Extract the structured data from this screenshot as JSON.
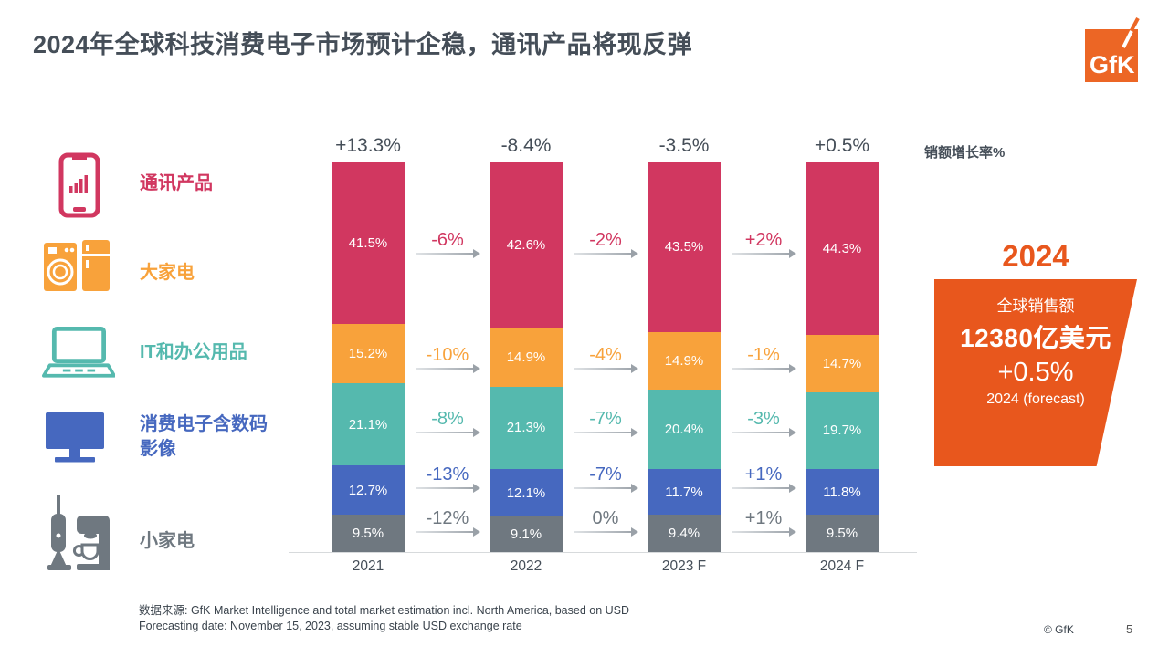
{
  "slide": {
    "title": "2024年全球科技消费电子市场预计企稳，通讯产品将现反弹",
    "page_number": "5",
    "copyright": "© GfK"
  },
  "logo": {
    "text": "GfK",
    "color": "#EC6625"
  },
  "legend": {
    "items": [
      {
        "label": "通讯产品",
        "color": "#D13760",
        "icon": "smartphone-icon"
      },
      {
        "label": "大家电",
        "color": "#F8A23B",
        "icon": "washer-fridge-icon"
      },
      {
        "label": "IT和办公用品",
        "color": "#55B9AE",
        "icon": "laptop-icon"
      },
      {
        "label": "消费电子含数码\n影像",
        "color": "#4668BF",
        "icon": "monitor-icon"
      },
      {
        "label": "小家电",
        "color": "#6F7880",
        "icon": "vacuum-coffee-icon"
      }
    ]
  },
  "chart_data": {
    "type": "bar",
    "subtype": "stacked-100-percent",
    "axis_note": "销额增长率%",
    "unit": "%",
    "grid": false,
    "legend_position": "left",
    "categories": [
      "2021",
      "2022",
      "2023 F",
      "2024 F"
    ],
    "total_growth": [
      "+13.3%",
      "-8.4%",
      "-3.5%",
      "+0.5%"
    ],
    "series": [
      {
        "name": "通讯产品",
        "color": "#D13760",
        "values": [
          41.5,
          42.6,
          43.5,
          44.3
        ]
      },
      {
        "name": "大家电",
        "color": "#F8A23B",
        "values": [
          15.2,
          14.9,
          14.9,
          14.7
        ]
      },
      {
        "name": "IT和办公用品",
        "color": "#55B9AE",
        "values": [
          21.1,
          21.3,
          20.4,
          19.7
        ]
      },
      {
        "name": "消费电子含数码影像",
        "color": "#4668BF",
        "values": [
          12.7,
          12.1,
          11.7,
          11.8
        ]
      },
      {
        "name": "小家电",
        "color": "#6F7880",
        "values": [
          9.5,
          9.1,
          9.4,
          9.5
        ]
      }
    ],
    "yoy_changes": [
      {
        "from": "2021",
        "to": "2022",
        "values": [
          "-6%",
          "-10%",
          "-8%",
          "-13%",
          "-12%"
        ]
      },
      {
        "from": "2022",
        "to": "2023 F",
        "values": [
          "-2%",
          "-4%",
          "-7%",
          "-7%",
          "0%"
        ]
      },
      {
        "from": "2023 F",
        "to": "2024 F",
        "values": [
          "+2%",
          "-1%",
          "-3%",
          "+1%",
          "+1%"
        ]
      }
    ]
  },
  "panel": {
    "year": "2024",
    "subtitle": "全球销售额",
    "value": "12380亿美元",
    "growth": "+0.5%",
    "caption": "2024 (forecast)",
    "accent": "#E8571D"
  },
  "footer": {
    "source_line1": "数据来源: GfK Market Intelligence and total market estimation incl. North America, based on USD",
    "source_line2": "Forecasting date: November 15, 2023, assuming stable USD exchange rate"
  }
}
